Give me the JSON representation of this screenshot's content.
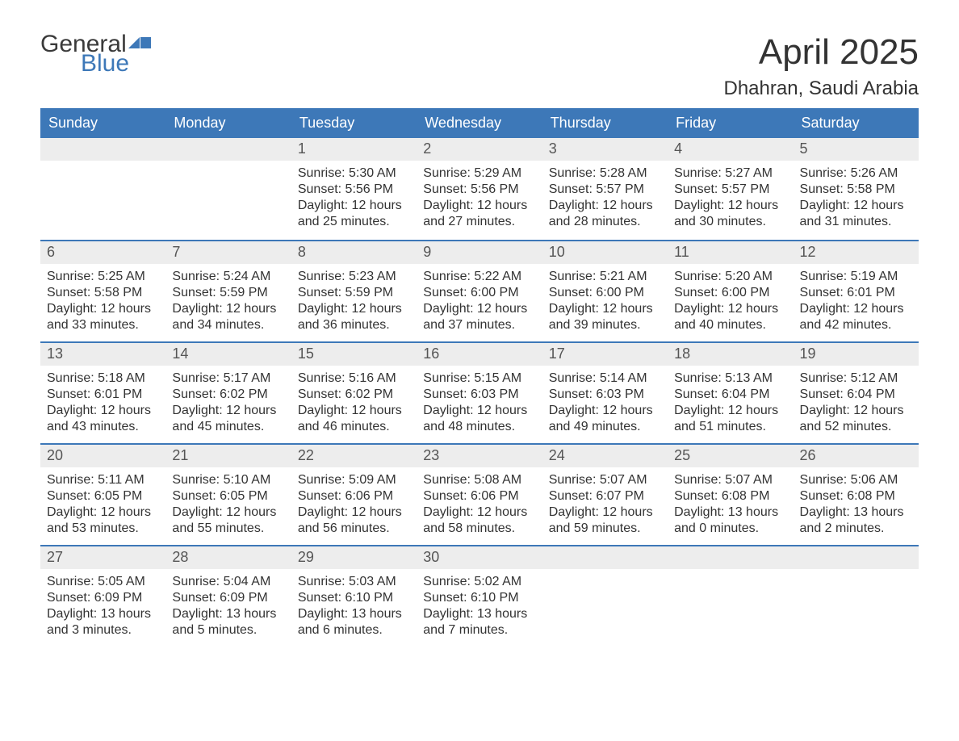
{
  "logo": {
    "text1": "General",
    "text2": "Blue",
    "flag_color": "#3d78b8"
  },
  "title": "April 2025",
  "location": "Dhahran, Saudi Arabia",
  "colors": {
    "header_bg": "#3d78b8",
    "header_text": "#ffffff",
    "daynum_bg": "#ededed",
    "daynum_text": "#555555",
    "body_text": "#333333",
    "rule": "#3d78b8",
    "page_bg": "#ffffff"
  },
  "fonts": {
    "title_size_pt": 33,
    "location_size_pt": 18,
    "dow_size_pt": 14,
    "daynum_size_pt": 14,
    "body_size_pt": 12
  },
  "layout": {
    "columns": 7,
    "rows": 5,
    "first_day_column_index": 2
  },
  "days_of_week": [
    "Sunday",
    "Monday",
    "Tuesday",
    "Wednesday",
    "Thursday",
    "Friday",
    "Saturday"
  ],
  "days": [
    {
      "n": 1,
      "sunrise": "5:30 AM",
      "sunset": "5:56 PM",
      "daylight": "12 hours and 25 minutes."
    },
    {
      "n": 2,
      "sunrise": "5:29 AM",
      "sunset": "5:56 PM",
      "daylight": "12 hours and 27 minutes."
    },
    {
      "n": 3,
      "sunrise": "5:28 AM",
      "sunset": "5:57 PM",
      "daylight": "12 hours and 28 minutes."
    },
    {
      "n": 4,
      "sunrise": "5:27 AM",
      "sunset": "5:57 PM",
      "daylight": "12 hours and 30 minutes."
    },
    {
      "n": 5,
      "sunrise": "5:26 AM",
      "sunset": "5:58 PM",
      "daylight": "12 hours and 31 minutes."
    },
    {
      "n": 6,
      "sunrise": "5:25 AM",
      "sunset": "5:58 PM",
      "daylight": "12 hours and 33 minutes."
    },
    {
      "n": 7,
      "sunrise": "5:24 AM",
      "sunset": "5:59 PM",
      "daylight": "12 hours and 34 minutes."
    },
    {
      "n": 8,
      "sunrise": "5:23 AM",
      "sunset": "5:59 PM",
      "daylight": "12 hours and 36 minutes."
    },
    {
      "n": 9,
      "sunrise": "5:22 AM",
      "sunset": "6:00 PM",
      "daylight": "12 hours and 37 minutes."
    },
    {
      "n": 10,
      "sunrise": "5:21 AM",
      "sunset": "6:00 PM",
      "daylight": "12 hours and 39 minutes."
    },
    {
      "n": 11,
      "sunrise": "5:20 AM",
      "sunset": "6:00 PM",
      "daylight": "12 hours and 40 minutes."
    },
    {
      "n": 12,
      "sunrise": "5:19 AM",
      "sunset": "6:01 PM",
      "daylight": "12 hours and 42 minutes."
    },
    {
      "n": 13,
      "sunrise": "5:18 AM",
      "sunset": "6:01 PM",
      "daylight": "12 hours and 43 minutes."
    },
    {
      "n": 14,
      "sunrise": "5:17 AM",
      "sunset": "6:02 PM",
      "daylight": "12 hours and 45 minutes."
    },
    {
      "n": 15,
      "sunrise": "5:16 AM",
      "sunset": "6:02 PM",
      "daylight": "12 hours and 46 minutes."
    },
    {
      "n": 16,
      "sunrise": "5:15 AM",
      "sunset": "6:03 PM",
      "daylight": "12 hours and 48 minutes."
    },
    {
      "n": 17,
      "sunrise": "5:14 AM",
      "sunset": "6:03 PM",
      "daylight": "12 hours and 49 minutes."
    },
    {
      "n": 18,
      "sunrise": "5:13 AM",
      "sunset": "6:04 PM",
      "daylight": "12 hours and 51 minutes."
    },
    {
      "n": 19,
      "sunrise": "5:12 AM",
      "sunset": "6:04 PM",
      "daylight": "12 hours and 52 minutes."
    },
    {
      "n": 20,
      "sunrise": "5:11 AM",
      "sunset": "6:05 PM",
      "daylight": "12 hours and 53 minutes."
    },
    {
      "n": 21,
      "sunrise": "5:10 AM",
      "sunset": "6:05 PM",
      "daylight": "12 hours and 55 minutes."
    },
    {
      "n": 22,
      "sunrise": "5:09 AM",
      "sunset": "6:06 PM",
      "daylight": "12 hours and 56 minutes."
    },
    {
      "n": 23,
      "sunrise": "5:08 AM",
      "sunset": "6:06 PM",
      "daylight": "12 hours and 58 minutes."
    },
    {
      "n": 24,
      "sunrise": "5:07 AM",
      "sunset": "6:07 PM",
      "daylight": "12 hours and 59 minutes."
    },
    {
      "n": 25,
      "sunrise": "5:07 AM",
      "sunset": "6:08 PM",
      "daylight": "13 hours and 0 minutes."
    },
    {
      "n": 26,
      "sunrise": "5:06 AM",
      "sunset": "6:08 PM",
      "daylight": "13 hours and 2 minutes."
    },
    {
      "n": 27,
      "sunrise": "5:05 AM",
      "sunset": "6:09 PM",
      "daylight": "13 hours and 3 minutes."
    },
    {
      "n": 28,
      "sunrise": "5:04 AM",
      "sunset": "6:09 PM",
      "daylight": "13 hours and 5 minutes."
    },
    {
      "n": 29,
      "sunrise": "5:03 AM",
      "sunset": "6:10 PM",
      "daylight": "13 hours and 6 minutes."
    },
    {
      "n": 30,
      "sunrise": "5:02 AM",
      "sunset": "6:10 PM",
      "daylight": "13 hours and 7 minutes."
    }
  ],
  "labels": {
    "sunrise": "Sunrise: ",
    "sunset": "Sunset: ",
    "daylight": "Daylight: "
  }
}
